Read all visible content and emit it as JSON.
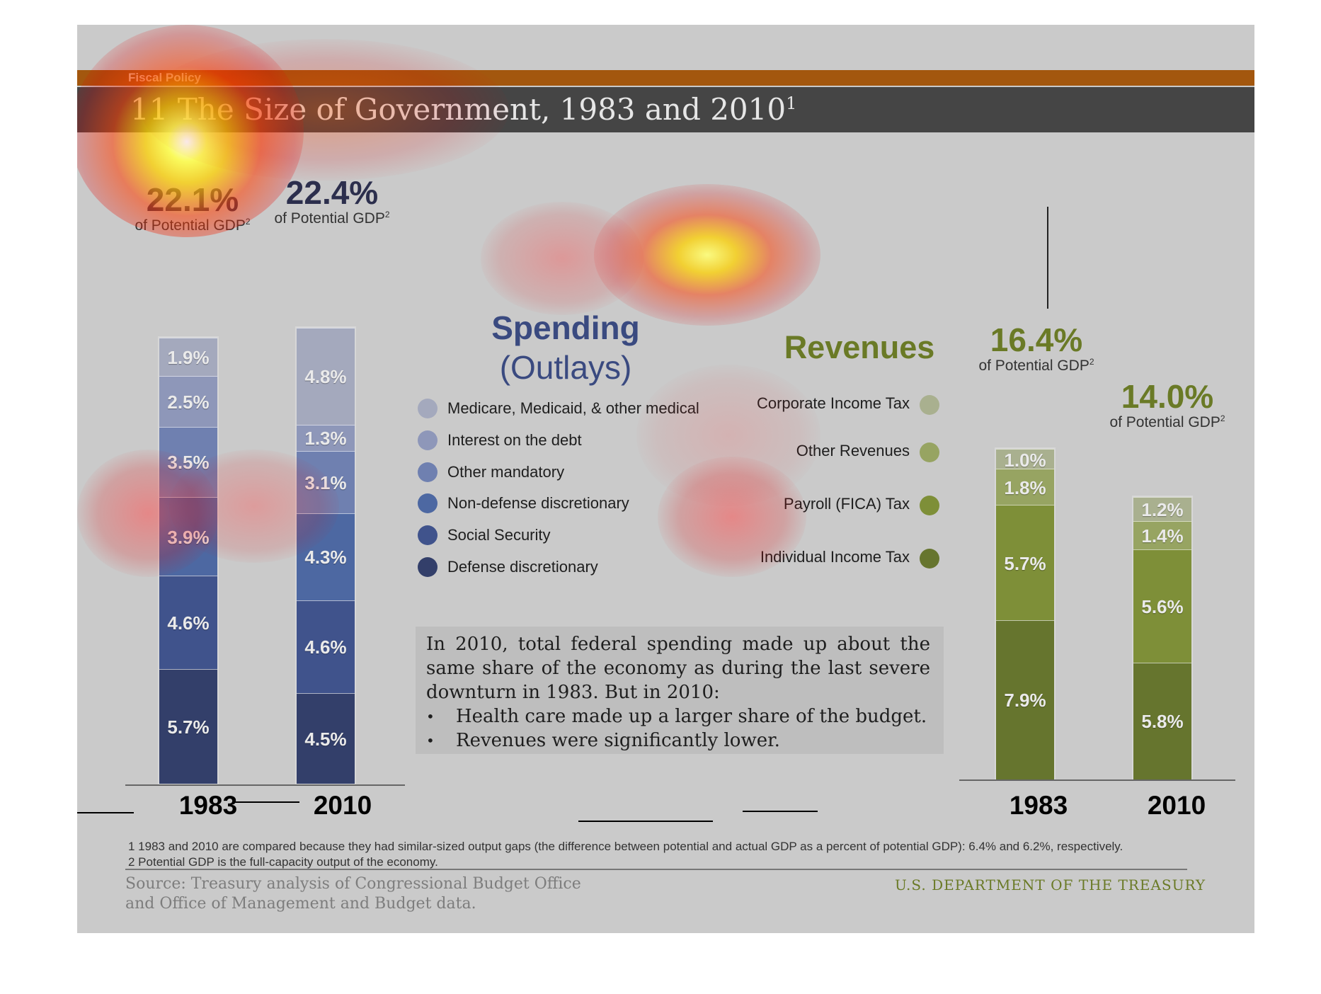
{
  "header": {
    "section": "Fiscal Policy",
    "title": "11 The Size of Government, 1983 and 2010",
    "title_sup": "1"
  },
  "spending": {
    "title_line1": "Spending",
    "title_line2": "(Outlays)",
    "totals": [
      {
        "year": "1983",
        "value": "22.1%",
        "label": "of Potential GDP",
        "sup": "2"
      },
      {
        "year": "2010",
        "value": "22.4%",
        "label": "of Potential GDP",
        "sup": "2"
      }
    ],
    "legend": [
      {
        "label": "Medicare, Medicaid, & other medical",
        "color": "#a4a9bd"
      },
      {
        "label": "Interest on the debt",
        "color": "#8e97b9"
      },
      {
        "label": "Other mandatory",
        "color": "#6f80b0"
      },
      {
        "label": "Non-defense discretionary",
        "color": "#4d68a2"
      },
      {
        "label": "Social Security",
        "color": "#40538c"
      },
      {
        "label": "Defense discretionary",
        "color": "#333f6a"
      }
    ]
  },
  "revenues": {
    "title": "Revenues",
    "totals": [
      {
        "year": "1983",
        "value": "16.4%",
        "label": "of Potential GDP",
        "sup": "2"
      },
      {
        "year": "2010",
        "value": "14.0%",
        "label": "of Potential GDP",
        "sup": "2"
      }
    ],
    "legend": [
      {
        "label": "Corporate Income Tax",
        "color": "#a9b08f"
      },
      {
        "label": "Other Revenues",
        "color": "#97a462"
      },
      {
        "label": "Payroll (FICA) Tax",
        "color": "#7e8f38"
      },
      {
        "label": "Individual Income Tax",
        "color": "#66752e"
      }
    ]
  },
  "note": {
    "text": "In 2010, total federal spending made up about the same share of the economy as during the last severe downturn in 1983. But in 2010:",
    "bullets": [
      "Health care made up a larger share of the budget.",
      "Revenues were significantly lower."
    ]
  },
  "footnotes": [
    "1 1983 and 2010 are compared because they had similar-sized output gaps (the difference between potential and actual GDP as a percent of potential GDP): 6.4% and 6.2%, respectively.",
    "2 Potential GDP is the full-capacity output of the economy."
  ],
  "source_line1": "Source: Treasury analysis of Congressional Budget Office",
  "source_line2": "and Office of Management and Budget data.",
  "agency": "U.S. DEPARTMENT OF THE TREASURY",
  "chart_data": [
    {
      "type": "bar",
      "stacked": true,
      "title": "Spending (Outlays)",
      "unit": "% of Potential GDP",
      "categories": [
        "1983",
        "2010"
      ],
      "series": [
        {
          "name": "Defense discretionary",
          "values": [
            5.7,
            4.5
          ],
          "labels": [
            "5.7%",
            "4.5%"
          ],
          "color": "#333f6a"
        },
        {
          "name": "Social Security",
          "values": [
            4.6,
            4.6
          ],
          "labels": [
            "4.6%",
            "4.6%"
          ],
          "color": "#40538c"
        },
        {
          "name": "Non-defense discretionary",
          "values": [
            3.9,
            4.3
          ],
          "labels": [
            "3.9%",
            "4.3%"
          ],
          "color": "#4d68a2"
        },
        {
          "name": "Other mandatory",
          "values": [
            3.5,
            3.1
          ],
          "labels": [
            "3.5%",
            "3.1%"
          ],
          "color": "#6f80b0"
        },
        {
          "name": "Interest on the debt",
          "values": [
            2.5,
            1.3
          ],
          "labels": [
            "2.5%",
            "1.3%"
          ],
          "color": "#8e97b9"
        },
        {
          "name": "Medicare, Medicaid, & other medical",
          "values": [
            1.9,
            4.8
          ],
          "labels": [
            "1.9%",
            "4.8%"
          ],
          "color": "#a4a9bd"
        }
      ],
      "totals": [
        22.1,
        22.4
      ]
    },
    {
      "type": "bar",
      "stacked": true,
      "title": "Revenues",
      "unit": "% of Potential GDP",
      "categories": [
        "1983",
        "2010"
      ],
      "series": [
        {
          "name": "Individual Income Tax",
          "values": [
            7.9,
            5.8
          ],
          "labels": [
            "7.9%",
            "5.8%"
          ],
          "color": "#66752e"
        },
        {
          "name": "Payroll (FICA) Tax",
          "values": [
            5.7,
            5.6
          ],
          "labels": [
            "5.7%",
            "5.6%"
          ],
          "color": "#7e8f38"
        },
        {
          "name": "Other Revenues",
          "values": [
            1.8,
            1.4
          ],
          "labels": [
            "1.8%",
            "1.4%"
          ],
          "color": "#97a462"
        },
        {
          "name": "Corporate Income Tax",
          "values": [
            1.0,
            1.2
          ],
          "labels": [
            "1.0%",
            "1.2%"
          ],
          "color": "#a9b08f"
        }
      ],
      "totals": [
        16.4,
        14.0
      ]
    }
  ]
}
